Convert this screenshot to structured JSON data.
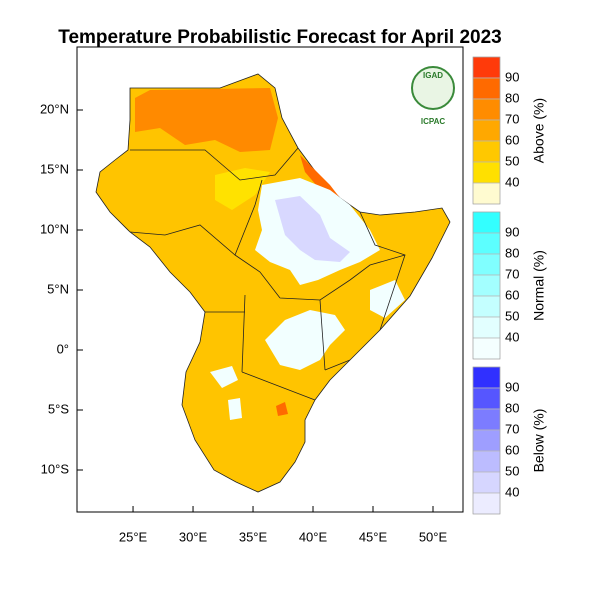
{
  "title": "Temperature Probabilistic Forecast for April 2023",
  "logo": {
    "top": "IGAD",
    "bottom": "ICPAC"
  },
  "map": {
    "xlim": [
      20.33,
      52.5
    ],
    "ylim": [
      -13.5,
      25.25
    ],
    "xticks": [
      {
        "value": 25,
        "label": "25°E"
      },
      {
        "value": 30,
        "label": "30°E"
      },
      {
        "value": 35,
        "label": "35°E"
      },
      {
        "value": 40,
        "label": "40°E"
      },
      {
        "value": 45,
        "label": "45°E"
      },
      {
        "value": 50,
        "label": "50°E"
      }
    ],
    "yticks": [
      {
        "value": 20,
        "label": "20°N"
      },
      {
        "value": 15,
        "label": "15°N"
      },
      {
        "value": 10,
        "label": "10°N"
      },
      {
        "value": 5,
        "label": "5°N"
      },
      {
        "value": 0,
        "label": "0°"
      },
      {
        "value": -5,
        "label": "5°S"
      },
      {
        "value": -10,
        "label": "10°S"
      }
    ]
  },
  "colorbars": [
    {
      "label": "Above (%)",
      "ticks": [
        90,
        80,
        70,
        60,
        50,
        40
      ],
      "colors": [
        "#ff3a0a",
        "#ff6a00",
        "#ff8c00",
        "#ffa800",
        "#ffc800",
        "#ffe000",
        "#fffbd0"
      ]
    },
    {
      "label": "Normal (%)",
      "ticks": [
        90,
        80,
        70,
        60,
        50,
        40
      ],
      "colors": [
        "#33ffff",
        "#5cffff",
        "#80ffff",
        "#a3ffff",
        "#c4ffff",
        "#e2ffff",
        "#f4ffff"
      ]
    },
    {
      "label": "Below (%)",
      "ticks": [
        90,
        80,
        70,
        60,
        50,
        40
      ],
      "colors": [
        "#3030ff",
        "#5656ff",
        "#7c7cff",
        "#9e9eff",
        "#bcbcff",
        "#d6d6ff",
        "#ececff"
      ]
    }
  ]
}
